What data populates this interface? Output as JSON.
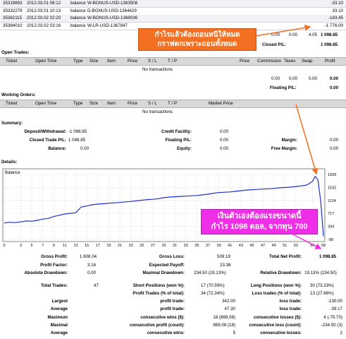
{
  "deals": [
    {
      "ticket": "35319893",
      "time": "2012.03.01 08:12",
      "type": "balance",
      "comment": "W-BONUS-USD-1363508",
      "amount": "-33.10"
    },
    {
      "ticket": "35332279",
      "time": "2012.03.01 10:13",
      "type": "balance",
      "comment": "D-BONUS-USD-1364429",
      "amount": "33.10"
    },
    {
      "ticket": "35382115",
      "time": "2012.03.02 02:20",
      "type": "balance",
      "comment": "W-BONUS-USD-1368036",
      "amount": "-183.45"
    },
    {
      "ticket": "35384010",
      "time": "2012.03.02 03:16",
      "type": "balance",
      "comment": "W-LR-USD-1367847",
      "amount": "-1 776.00"
    }
  ],
  "totals_row": [
    "0.00",
    "0.00",
    "4.05",
    "1 098.85"
  ],
  "closed_pl": {
    "label": "Closed P/L:",
    "value": "1 098.85"
  },
  "annotation_top": {
    "line1": "กำไรแล้วต้องถอนหนีให้หมด",
    "line2": "กราฟตกเพราะถอนทั้งหมด"
  },
  "open_trades": {
    "title": "Open Trades:",
    "columns": [
      "Ticket",
      "Open Time",
      "Type",
      "Size",
      "Item",
      "Price",
      "S / L",
      "T / P",
      "Price",
      "Commission",
      "Taxes",
      "Swap",
      "Profit"
    ],
    "empty": "No transactions",
    "totals": [
      "0.00",
      "0.00",
      "0.00",
      "0.00"
    ],
    "floating_label": "Floating P/L:",
    "floating_value": "0.00"
  },
  "working_orders": {
    "title": "Working Orders:",
    "columns": [
      "Ticket",
      "Open Time",
      "Type",
      "Size",
      "Item",
      "Price",
      "S / L",
      "T / P",
      "Market Price"
    ],
    "empty": "No transactions"
  },
  "summary": {
    "title": "Summary:",
    "deposit_withdrawal": {
      "label": "Deposit/Withdrawal:",
      "value": "-1 098.85"
    },
    "closed_trade_pl": {
      "label": "Closed Trade P/L:",
      "value": "1 098.85"
    },
    "balance": {
      "label": "Balance:",
      "value": "0.00"
    },
    "credit_facility": {
      "label": "Credit Facility:",
      "value": "0.00"
    },
    "floating_pl": {
      "label": "Floating P/L:",
      "value": "0.00"
    },
    "equity": {
      "label": "Equity:",
      "value": "0.00"
    },
    "margin": {
      "label": "Margin:",
      "value": "0.00"
    },
    "free_margin": {
      "label": "Free Margin:",
      "value": "0.00"
    }
  },
  "details_title": "Details:",
  "chart_data": {
    "type": "line",
    "title": "Balance",
    "x_ticks": [
      "0",
      "3",
      "5",
      "7",
      "9",
      "11",
      "13",
      "15",
      "17",
      "19",
      "21",
      "23",
      "25",
      "27",
      "29",
      "31",
      "33",
      "35",
      "37",
      "39",
      "41",
      "43",
      "45",
      "47",
      "49",
      "51",
      "53",
      "56",
      "58"
    ],
    "y_ticks": [
      "1939",
      "1532",
      "1124",
      "717",
      "309",
      "-98"
    ],
    "ylim": [
      -98,
      1939
    ],
    "xlim": [
      0,
      58
    ],
    "x": [
      0,
      1,
      2,
      3,
      4,
      5,
      6,
      7,
      8,
      9,
      10,
      11,
      12,
      13,
      14,
      15,
      16,
      17,
      18,
      19,
      20,
      21,
      22,
      23,
      24,
      25,
      26,
      27,
      28,
      29,
      30,
      31,
      32,
      33,
      34,
      35,
      36,
      37,
      38,
      39,
      40,
      41,
      42,
      43,
      44,
      45,
      46,
      47,
      48,
      49,
      50,
      51,
      52,
      53,
      54,
      55,
      56,
      56.5,
      57,
      57.5,
      58
    ],
    "y": [
      420,
      440,
      430,
      450,
      480,
      470,
      500,
      540,
      560,
      620,
      660,
      700,
      720,
      740,
      920,
      950,
      990,
      1010,
      1020,
      1040,
      1050,
      1060,
      1080,
      1090,
      1110,
      1130,
      1150,
      1160,
      1180,
      1210,
      1230,
      1240,
      1250,
      1260,
      1270,
      1280,
      1300,
      1320,
      1350,
      1370,
      1380,
      1390,
      1410,
      1430,
      1450,
      1460,
      1470,
      1480,
      1490,
      1500,
      1520,
      1530,
      1540,
      1560,
      1580,
      1610,
      1720,
      1880,
      1770,
      1100,
      0
    ],
    "line_color": "#1f2fd0",
    "grid": true
  },
  "annotation_bottom": {
    "line1": "เงินตัวเองต้องแรงขนาดนี้",
    "line2": "กำไร 1098 ดอล, จากทุน 700"
  },
  "stats": {
    "gross_profit": {
      "label": "Gross Profit:",
      "value": "1 608.04"
    },
    "gross_loss": {
      "label": "Gross Loss:",
      "value": "509.19"
    },
    "total_net_profit": {
      "label": "Total Net Profit:",
      "value": "1 098.85"
    },
    "profit_factor": {
      "label": "Profit Factor:",
      "value": "3.16"
    },
    "expected_payoff": {
      "label": "Expected Payoff:",
      "value": "23.38"
    },
    "absolute_drawdown": {
      "label": "Absolute Drawdown:",
      "value": "0.00"
    },
    "maximal_drawdown": {
      "label": "Maximal Drawdown:",
      "value": "234.50 (19.13%)"
    },
    "relative_drawdown": {
      "label": "Relative Drawdown:",
      "value": "19.13% (234.50)"
    },
    "total_trades": {
      "label": "Total Trades:",
      "value": "47"
    },
    "short_positions": {
      "label": "Short Positions (won %):",
      "value": "17 (70.59%)"
    },
    "long_positions": {
      "label": "Long Positions (won %):",
      "value": "30 (73.33%)"
    },
    "profit_trades": {
      "label": "Profit Trades (% of total):",
      "value": "34 (72.34%)"
    },
    "loss_trades": {
      "label": "Loss trades (% of total):",
      "value": "13 (27.66%)"
    },
    "largest": {
      "label": "Largest",
      "mid": "profit trade:",
      "mid_value": "342.00",
      "right": "loss trade:",
      "right_value": "-130.00"
    },
    "average": {
      "label": "Average",
      "mid": "profit trade:",
      "mid_value": "47.30",
      "right": "loss trade:",
      "right_value": "-39.17"
    },
    "maximum": {
      "label": "Maximum",
      "mid": "consecutive wins ($):",
      "mid_value": "18 (869.08)",
      "right": "consecutive losses ($):",
      "right_value": "4 (-75.70)"
    },
    "maximal": {
      "label": "Maximal",
      "mid": "consecutive profit (count):",
      "mid_value": "869.08 (18)",
      "right": "consecutive loss (count):",
      "right_value": "-234.50 (3)"
    },
    "average2": {
      "label": "Average",
      "mid": "consecutive wins:",
      "mid_value": "5",
      "right": "consecutive losses:",
      "right_value": "2"
    }
  },
  "colors": {
    "header_bg": "#d8d8d8",
    "callout_orange": "#f36f21",
    "callout_pink": "#ef2fe7",
    "arrow_orange": "#f36f21",
    "arrow_pink": "#ef2fe7"
  }
}
